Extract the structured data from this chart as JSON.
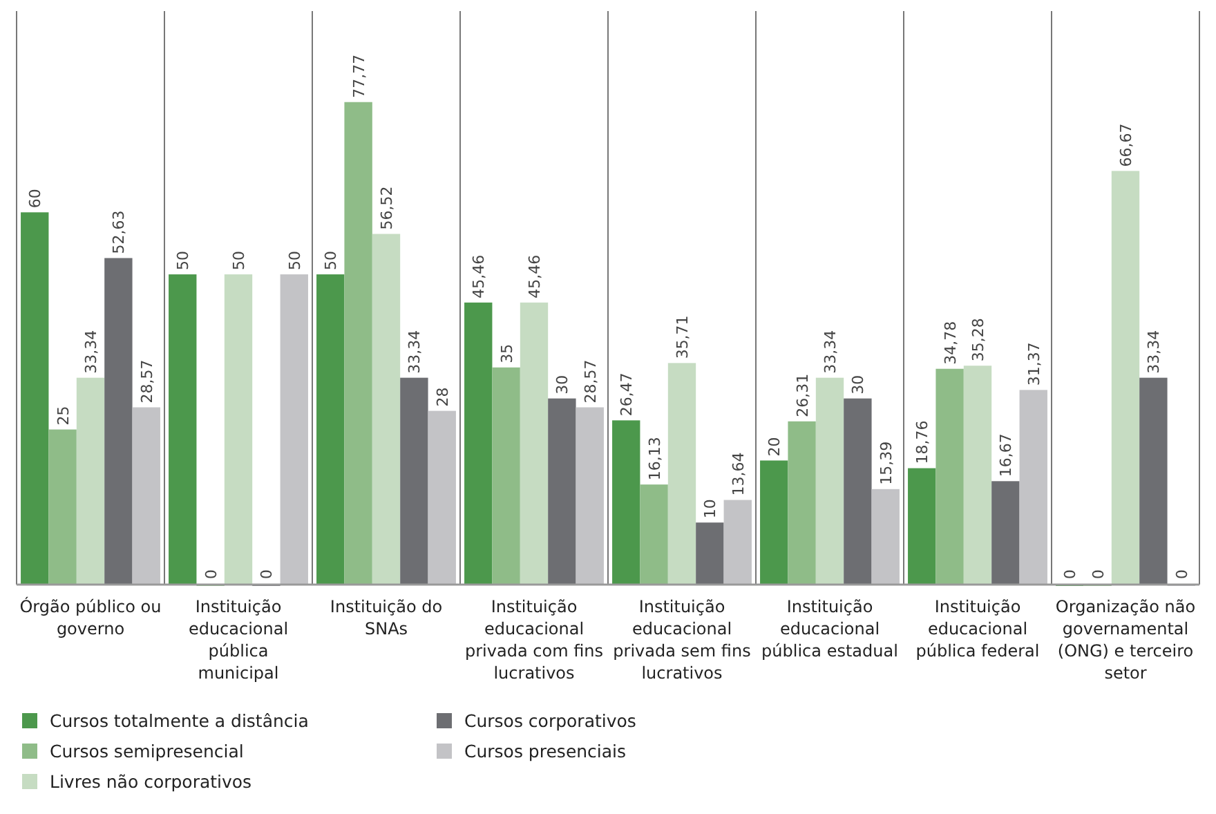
{
  "chart_data": {
    "type": "bar",
    "categories": [
      "Órgão público ou governo",
      "Instituição educacional pública municipal",
      "Instituição do SNAs",
      "Instituição educacional privada com fins lucrativos",
      "Instituição educacional privada sem fins lucrativos",
      "Instituição educacional pública estadual",
      "Instituição educacional pública federal",
      "Organização não governamental (ONG) e terceiro setor"
    ],
    "series": [
      {
        "name": "Cursos totalmente a distância",
        "color": "#4c984c",
        "values": [
          60,
          50,
          50,
          45.46,
          26.47,
          20,
          18.76,
          0
        ],
        "value_labels": [
          "60",
          "50",
          "50",
          "45,46",
          "26,47",
          "20",
          "18,76",
          "0"
        ]
      },
      {
        "name": "Cursos semipresencial",
        "color": "#8fbc88",
        "values": [
          25,
          0,
          77.77,
          35,
          16.13,
          26.31,
          34.78,
          0
        ],
        "value_labels": [
          "25",
          "0",
          "77,77",
          "35",
          "16,13",
          "26,31",
          "34,78",
          "0"
        ]
      },
      {
        "name": "Livres não corporativos",
        "color": "#c6dcc2",
        "values": [
          33.34,
          50,
          56.52,
          45.46,
          35.71,
          33.34,
          35.28,
          66.67
        ],
        "value_labels": [
          "33,34",
          "50",
          "56,52",
          "45,46",
          "35,71",
          "33,34",
          "35,28",
          "66,67"
        ]
      },
      {
        "name": "Cursos corporativos",
        "color": "#6d6e72",
        "values": [
          52.63,
          0,
          33.34,
          30,
          10,
          30,
          16.67,
          33.34
        ],
        "value_labels": [
          "52,63",
          "0",
          "33,34",
          "30",
          "10",
          "30",
          "16,67",
          "33,34"
        ]
      },
      {
        "name": "Cursos presenciais",
        "color": "#c3c3c6",
        "values": [
          28.57,
          50,
          28,
          28.57,
          13.64,
          15.39,
          31.37,
          0
        ],
        "value_labels": [
          "28,57",
          "50",
          "28",
          "28,57",
          "13,64",
          "15,39",
          "31,37",
          "0"
        ]
      }
    ],
    "legend": "bottom"
  }
}
